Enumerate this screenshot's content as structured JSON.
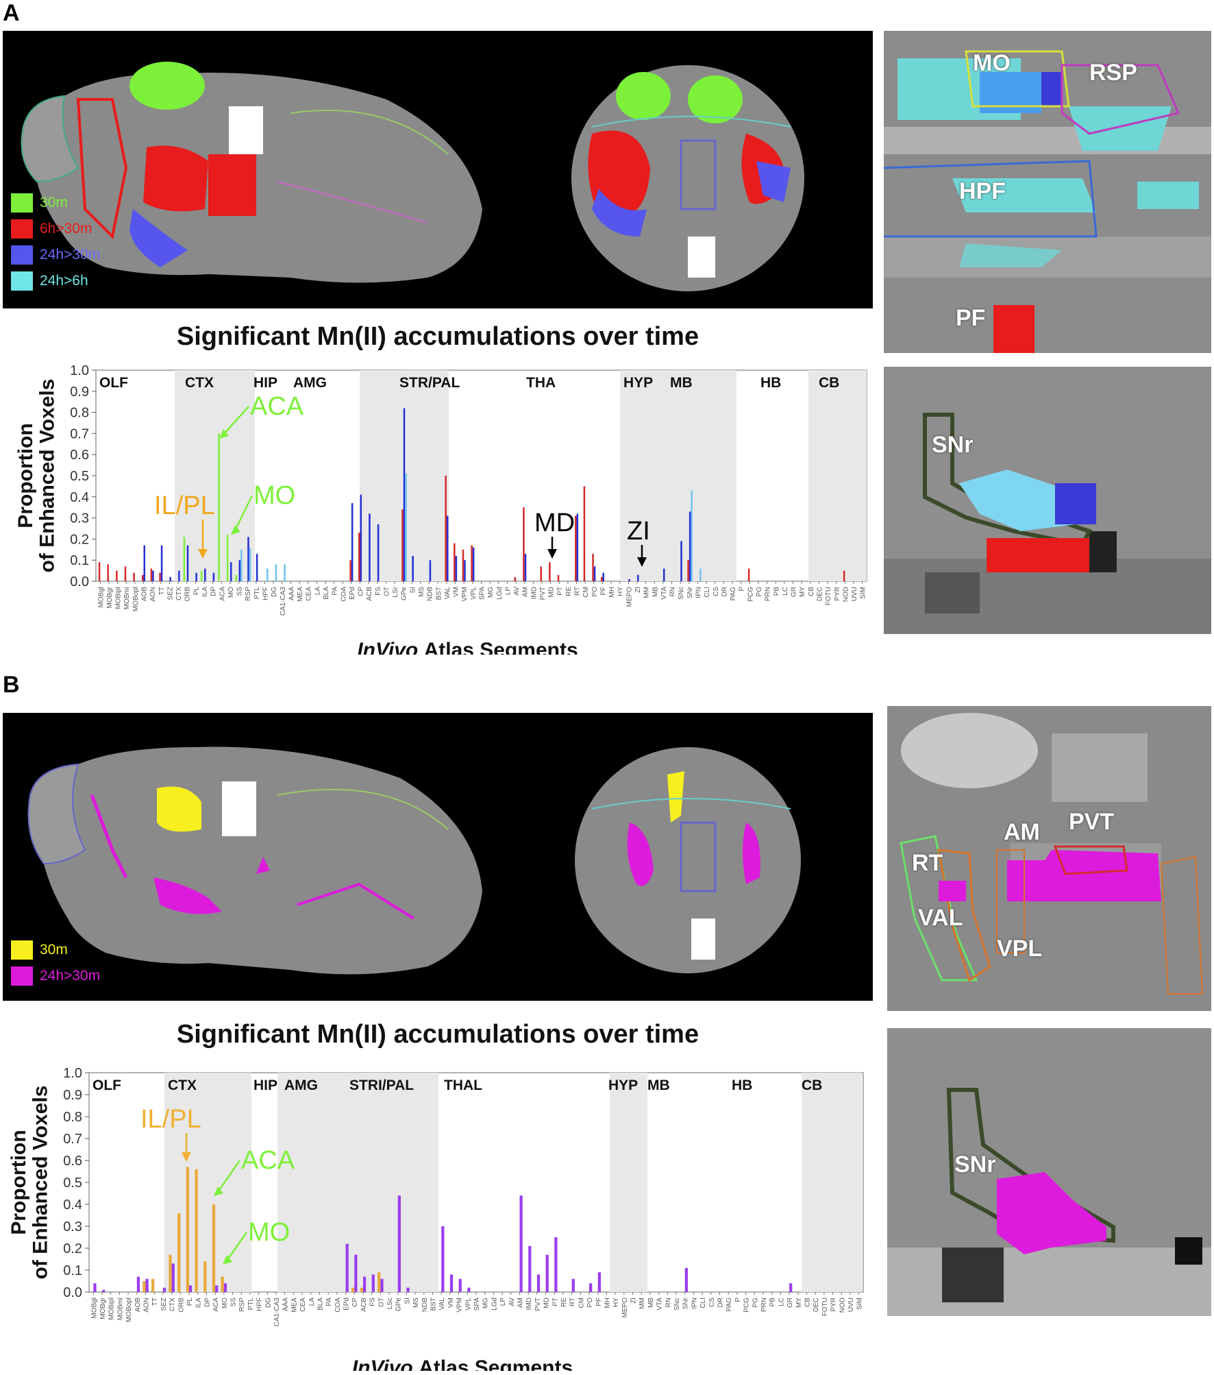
{
  "panels": [
    {
      "letter": "A",
      "legend": [
        {
          "label": "30m",
          "color": "#7df03a"
        },
        {
          "label": "6h>30m",
          "color": "#e81c1c"
        },
        {
          "label": "24h>30m",
          "color": "#5656ee"
        },
        {
          "label": "24h>6h",
          "color": "#6fe6e6"
        }
      ],
      "title": "Significant Mn(II) accumulations over time",
      "insets": [
        {
          "labels": [
            "MO",
            "RSP",
            "HPF",
            "PF"
          ]
        },
        {
          "labels": [
            "SNr"
          ]
        }
      ]
    },
    {
      "letter": "B",
      "legend": [
        {
          "label": "30m",
          "color": "#f7ef1e"
        },
        {
          "label": "24h>30m",
          "color": "#dd1bdd"
        }
      ],
      "title": "Significant Mn(II) accumulations over time",
      "insets": [
        {
          "labels": [
            "AM",
            "PVT",
            "RT",
            "VAL",
            "VPL"
          ]
        },
        {
          "labels": [
            "SNr"
          ]
        }
      ]
    }
  ],
  "chart_data": [
    {
      "type": "bar",
      "ylabel": "Proportion of Enhanced Voxels",
      "xlabel": "InVivo Atlas Segments",
      "ylim": [
        0,
        1.0
      ],
      "yticks": [
        "0.0",
        "0.1",
        "0.2",
        "0.3",
        "0.4",
        "0.5",
        "0.6",
        "0.7",
        "0.8",
        "0.9",
        "1.0"
      ],
      "categories": [
        "MOBgl",
        "MOBgr",
        "MOBipl",
        "MOBmi",
        "MOBopl",
        "AOB",
        "AON",
        "TT",
        "SEZ",
        "CTX",
        "ORB",
        "PL",
        "ILA",
        "DP",
        "ACA",
        "MO",
        "SS",
        "RSP",
        "PTL",
        "HPF",
        "DG",
        "CA1-CA3",
        "AAA",
        "MEA",
        "CEA",
        "LA",
        "BLA",
        "PA",
        "COA",
        "EPd",
        "CP",
        "ACB",
        "FS",
        "OT",
        "LSr",
        "GPe",
        "SI",
        "MS",
        "NDB",
        "BST",
        "VAL",
        "VM",
        "VPM",
        "VPL",
        "SPA",
        "MG",
        "LGd",
        "LP",
        "AV",
        "AM",
        "IMD",
        "PVT",
        "MD",
        "PT",
        "RE",
        "RT",
        "CM",
        "PO",
        "PF",
        "MH",
        "HY",
        "MEPO",
        "ZI",
        "MM",
        "MB",
        "VTA",
        "RN",
        "SNc",
        "SNr",
        "IPN",
        "CLI",
        "CS",
        "DR",
        "PAG",
        "P",
        "PCG",
        "PG",
        "PRN",
        "PB",
        "LC",
        "GR",
        "MY",
        "CB",
        "DEC",
        "FOTU",
        "PYR",
        "NOD",
        "UVU",
        "SIM"
      ],
      "regions": [
        "OLF",
        "CTX",
        "HIP",
        "AMG",
        "STR/PAL",
        "THA",
        "HYP",
        "MB",
        "HB",
        "CB"
      ],
      "series": [
        {
          "name": "30m",
          "color": "#7df03a",
          "values": {
            "ORB": 0.21,
            "ILA": 0.05,
            "ACA": 0.7,
            "MO": 0.22,
            "SS": 0.03
          }
        },
        {
          "name": "6h>30m",
          "color": "#d42a2a",
          "values": {
            "MOBgl": 0.09,
            "MOBgr": 0.08,
            "MOBipl": 0.05,
            "MOBmi": 0.07,
            "MOBopl": 0.04,
            "AOB": 0.03,
            "AON": 0.06,
            "TT": 0.04,
            "EPd": 0.1,
            "CP": 0.23,
            "GPe": 0.34,
            "VAL": 0.5,
            "VM": 0.18,
            "VPM": 0.15,
            "VPL": 0.17,
            "AV": 0.02,
            "AM": 0.35,
            "PVT": 0.07,
            "MD": 0.09,
            "PT": 0.03,
            "RT": 0.31,
            "CM": 0.45,
            "PO": 0.13,
            "PF": 0.02,
            "SNr": 0.1,
            "PCG": 0.06,
            "NOD": 0.05
          }
        },
        {
          "name": "24h>30m",
          "color": "#2430d6",
          "values": {
            "AOB": 0.17,
            "AON": 0.05,
            "TT": 0.17,
            "SEZ": 0.02,
            "CTX": 0.05,
            "ORB": 0.17,
            "PL": 0.04,
            "ILA": 0.06,
            "DP": 0.04,
            "MO": 0.09,
            "SS": 0.1,
            "RSP": 0.21,
            "PTL": 0.13,
            "EPd": 0.37,
            "CP": 0.41,
            "ACB": 0.32,
            "FS": 0.27,
            "GPe": 0.82,
            "SI": 0.12,
            "NDB": 0.1,
            "VAL": 0.31,
            "VM": 0.12,
            "VPM": 0.1,
            "VPL": 0.16,
            "AM": 0.13,
            "RT": 0.32,
            "PO": 0.07,
            "PF": 0.04,
            "MEPO": 0.01,
            "ZI": 0.03,
            "VTA": 0.06,
            "SNc": 0.19,
            "SNr": 0.33
          }
        },
        {
          "name": "24h>6h",
          "color": "#6fc3f0",
          "values": {
            "SS": 0.15,
            "RSP": 0.16,
            "HPF": 0.06,
            "DG": 0.08,
            "CA1-CA3": 0.08,
            "GPe": 0.51,
            "SNr": 0.43,
            "IPN": 0.06
          }
        }
      ],
      "annotations": [
        {
          "text": "ACA",
          "color": "#7df03a"
        },
        {
          "text": "MO",
          "color": "#7df03a"
        },
        {
          "text": "IL/PL",
          "color": "#f0a820"
        },
        {
          "text": "MD",
          "color": "#000000"
        },
        {
          "text": "ZI",
          "color": "#000000"
        }
      ]
    },
    {
      "type": "bar",
      "ylabel": "Proportion of Enhanced Voxels",
      "xlabel": "InVivo Atlas Segments",
      "ylim": [
        0,
        1.0
      ],
      "yticks": [
        "0.0",
        "0.1",
        "0.2",
        "0.3",
        "0.4",
        "0.5",
        "0.6",
        "0.7",
        "0.8",
        "0.9",
        "1.0"
      ],
      "categories": [
        "MOBgl",
        "MOBgr",
        "MOBipl",
        "MOBmi",
        "MOBopl",
        "AOB",
        "AON",
        "TT",
        "SEZ",
        "CTX",
        "ORB",
        "PL",
        "ILA",
        "DP",
        "ACA",
        "MO",
        "SS",
        "RSP",
        "PTL",
        "HPF",
        "DG",
        "CA1-CA3",
        "AAA",
        "MEA",
        "CEA",
        "LA",
        "BLA",
        "PA",
        "COA",
        "EPd",
        "CP",
        "ACB",
        "FS",
        "OT",
        "LSc",
        "GPe",
        "SI",
        "MS",
        "NDB",
        "BST",
        "VAL",
        "VM",
        "VPM",
        "VPL",
        "SPA",
        "MG",
        "LGd",
        "LP",
        "AV",
        "AM",
        "IMD",
        "PVT",
        "MD",
        "PT",
        "RE",
        "RT",
        "CM",
        "PO",
        "PF",
        "MH",
        "HY",
        "MEPO",
        "ZI",
        "MM",
        "MB",
        "VTA",
        "RN",
        "SNc",
        "SNr",
        "IPN",
        "CLI",
        "CS",
        "DR",
        "PAG",
        "P",
        "PCG",
        "PG",
        "PRN",
        "PB",
        "LC",
        "GR",
        "MY",
        "CB",
        "DEC",
        "FOTU",
        "PYR",
        "NOD",
        "UVU",
        "SIM"
      ],
      "regions": [
        "OLF",
        "CTX",
        "HIP",
        "AMG",
        "STRI/PAL",
        "THAL",
        "HYP",
        "MB",
        "HB",
        "CB"
      ],
      "series": [
        {
          "name": "30m",
          "color": "#e8a93a",
          "values": {
            "AON": 0.05,
            "TT": 0.06,
            "CTX": 0.17,
            "ORB": 0.36,
            "PL": 0.57,
            "ILA": 0.56,
            "DP": 0.14,
            "ACA": 0.4,
            "MO": 0.07,
            "OT": 0.09,
            "ACB": 0.02,
            "CP": 0.02
          }
        },
        {
          "name": "24h>30m",
          "color": "#9a3df0",
          "values": {
            "MOBgl": 0.04,
            "MOBgr": 0.01,
            "AOB": 0.07,
            "AON": 0.06,
            "SEZ": 0.02,
            "CTX": 0.13,
            "PL": 0.03,
            "ACA": 0.03,
            "MO": 0.04,
            "EPd": 0.22,
            "CP": 0.17,
            "ACB": 0.07,
            "FS": 0.08,
            "OT": 0.06,
            "GPe": 0.44,
            "SI": 0.02,
            "VAL": 0.3,
            "VM": 0.08,
            "VPM": 0.06,
            "VPL": 0.02,
            "AM": 0.44,
            "IMD": 0.21,
            "PVT": 0.08,
            "MD": 0.17,
            "PT": 0.25,
            "RT": 0.06,
            "PO": 0.04,
            "PF": 0.09,
            "SNr": 0.11,
            "GR": 0.04
          }
        }
      ],
      "annotations": [
        {
          "text": "IL/PL",
          "color": "#f0b030"
        },
        {
          "text": "ACA",
          "color": "#7df03a"
        },
        {
          "text": "MO",
          "color": "#7df03a"
        }
      ]
    }
  ]
}
